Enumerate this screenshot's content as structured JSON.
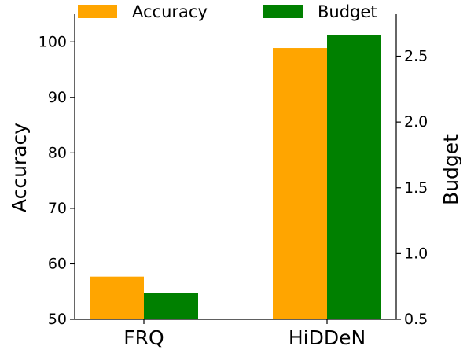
{
  "chart_data": {
    "type": "bar",
    "categories": [
      "FRQ",
      "HiDDeN"
    ],
    "series": [
      {
        "name": "Accuracy",
        "axis": "left",
        "color": "#FFA500",
        "values": [
          57.7,
          98.9
        ]
      },
      {
        "name": "Budget",
        "axis": "right",
        "color": "#008000",
        "values": [
          0.7,
          2.66
        ]
      }
    ],
    "ylabel": "Accuracy",
    "ylabel_right": "Budget",
    "ylim": [
      50,
      105
    ],
    "ylim_right": [
      0.5,
      2.82
    ],
    "yticks": [
      "50",
      "60",
      "70",
      "80",
      "90",
      "100"
    ],
    "yticks_right": [
      "0.5",
      "1.0",
      "1.5",
      "2.0",
      "2.5"
    ],
    "legend_placement": "top-center",
    "grid": false
  }
}
